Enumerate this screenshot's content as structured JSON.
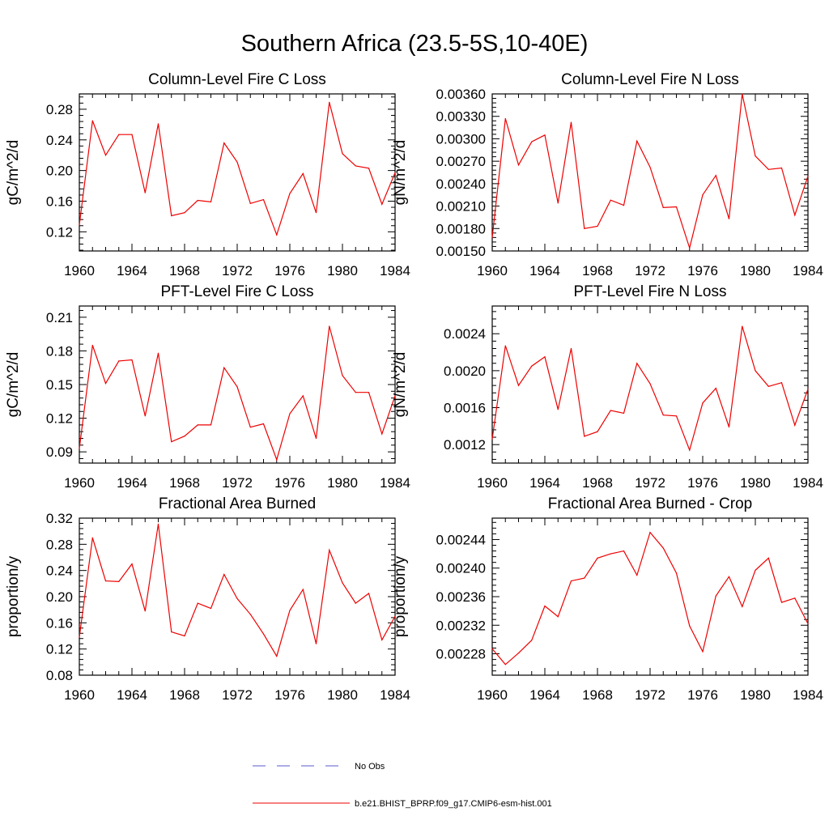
{
  "figure": {
    "title": "Southern Africa (23.5-5S,10-40E)"
  },
  "legend": [
    {
      "label": "No Obs",
      "color": "#5a5acc",
      "style": "dashed"
    },
    {
      "label": "b.e21.BHIST_BPRP.f09_g17.CMIP6-esm-hist.001",
      "color": "#ee0000",
      "style": "solid"
    }
  ],
  "chart_data": [
    {
      "type": "line",
      "title": "Column-Level Fire C Loss",
      "ylabel": "gC/m^2/d",
      "xlim": [
        1960,
        1984
      ],
      "ylim": [
        0.095,
        0.3
      ],
      "xticks": [
        "1960",
        "1964",
        "1968",
        "1972",
        "1976",
        "1980",
        "1984"
      ],
      "yticks": [
        "0.12",
        "0.16",
        "0.20",
        "0.24",
        "0.28"
      ],
      "x": [
        1960,
        1961,
        1962,
        1963,
        1964,
        1965,
        1966,
        1967,
        1968,
        1969,
        1970,
        1971,
        1972,
        1973,
        1974,
        1975,
        1976,
        1977,
        1978,
        1979,
        1980,
        1981,
        1982,
        1983,
        1984
      ],
      "series": [
        {
          "name": "b.e21.BHIST_BPRP.f09_g17.CMIP6-esm-hist.001",
          "color": "#ee0000",
          "values": [
            0.129,
            0.265,
            0.22,
            0.247,
            0.247,
            0.171,
            0.261,
            0.141,
            0.145,
            0.161,
            0.159,
            0.236,
            0.211,
            0.157,
            0.162,
            0.116,
            0.17,
            0.196,
            0.145,
            0.289,
            0.222,
            0.206,
            0.203,
            0.156,
            0.197
          ]
        }
      ]
    },
    {
      "type": "line",
      "title": "Column-Level Fire N Loss",
      "ylabel": "gN/m^2/d",
      "xlim": [
        1960,
        1984
      ],
      "ylim": [
        0.0015,
        0.0036
      ],
      "xticks": [
        "1960",
        "1964",
        "1968",
        "1972",
        "1976",
        "1980",
        "1984"
      ],
      "yticks": [
        "0.00150",
        "0.00180",
        "0.00210",
        "0.00240",
        "0.00270",
        "0.00300",
        "0.00330",
        "0.00360"
      ],
      "x": [
        1960,
        1961,
        1962,
        1963,
        1964,
        1965,
        1966,
        1967,
        1968,
        1969,
        1970,
        1971,
        1972,
        1973,
        1974,
        1975,
        1976,
        1977,
        1978,
        1979,
        1980,
        1981,
        1982,
        1983,
        1984
      ],
      "series": [
        {
          "name": "b.e21.BHIST_BPRP.f09_g17.CMIP6-esm-hist.001",
          "color": "#ee0000",
          "values": [
            0.00168,
            0.00327,
            0.00265,
            0.00296,
            0.00305,
            0.00214,
            0.00322,
            0.0018,
            0.00183,
            0.00218,
            0.00211,
            0.00297,
            0.00262,
            0.00208,
            0.00209,
            0.00154,
            0.00225,
            0.00251,
            0.00193,
            0.0036,
            0.00277,
            0.00259,
            0.00261,
            0.00198,
            0.0025
          ]
        }
      ]
    },
    {
      "type": "line",
      "title": "PFT-Level Fire C Loss",
      "ylabel": "gC/m^2/d",
      "xlim": [
        1960,
        1984
      ],
      "ylim": [
        0.08,
        0.22
      ],
      "xticks": [
        "1960",
        "1964",
        "1968",
        "1972",
        "1976",
        "1980",
        "1984"
      ],
      "yticks": [
        "0.09",
        "0.12",
        "0.15",
        "0.18",
        "0.21"
      ],
      "x": [
        1960,
        1961,
        1962,
        1963,
        1964,
        1965,
        1966,
        1967,
        1968,
        1969,
        1970,
        1971,
        1972,
        1973,
        1974,
        1975,
        1976,
        1977,
        1978,
        1979,
        1980,
        1981,
        1982,
        1983,
        1984
      ],
      "series": [
        {
          "name": "b.e21.BHIST_BPRP.f09_g17.CMIP6-esm-hist.001",
          "color": "#ee0000",
          "values": [
            0.093,
            0.185,
            0.151,
            0.171,
            0.172,
            0.122,
            0.178,
            0.099,
            0.104,
            0.114,
            0.114,
            0.165,
            0.148,
            0.112,
            0.115,
            0.083,
            0.124,
            0.14,
            0.102,
            0.202,
            0.158,
            0.143,
            0.143,
            0.106,
            0.14
          ]
        }
      ]
    },
    {
      "type": "line",
      "title": "PFT-Level Fire N Loss",
      "ylabel": "gN/m^2/d",
      "xlim": [
        1960,
        1984
      ],
      "ylim": [
        0.001,
        0.0027
      ],
      "xticks": [
        "1960",
        "1964",
        "1968",
        "1972",
        "1976",
        "1980",
        "1984"
      ],
      "yticks": [
        "0.0012",
        "0.0016",
        "0.0020",
        "0.0024"
      ],
      "x": [
        1960,
        1961,
        1962,
        1963,
        1964,
        1965,
        1966,
        1967,
        1968,
        1969,
        1970,
        1971,
        1972,
        1973,
        1974,
        1975,
        1976,
        1977,
        1978,
        1979,
        1980,
        1981,
        1982,
        1983,
        1984
      ],
      "series": [
        {
          "name": "b.e21.BHIST_BPRP.f09_g17.CMIP6-esm-hist.001",
          "color": "#ee0000",
          "values": [
            0.00126,
            0.00227,
            0.00184,
            0.00205,
            0.00215,
            0.00158,
            0.00224,
            0.00129,
            0.00134,
            0.00157,
            0.00154,
            0.00208,
            0.00186,
            0.00152,
            0.00151,
            0.00114,
            0.00165,
            0.00181,
            0.00139,
            0.00248,
            0.002,
            0.00183,
            0.00187,
            0.00141,
            0.0018
          ]
        }
      ]
    },
    {
      "type": "line",
      "title": "Fractional Area Burned",
      "ylabel": "proportion/y",
      "xlim": [
        1960,
        1984
      ],
      "ylim": [
        0.08,
        0.32
      ],
      "xticks": [
        "1960",
        "1964",
        "1968",
        "1972",
        "1976",
        "1980",
        "1984"
      ],
      "yticks": [
        "0.08",
        "0.12",
        "0.16",
        "0.20",
        "0.24",
        "0.28",
        "0.32"
      ],
      "x": [
        1960,
        1961,
        1962,
        1963,
        1964,
        1965,
        1966,
        1967,
        1968,
        1969,
        1970,
        1971,
        1972,
        1973,
        1974,
        1975,
        1976,
        1977,
        1978,
        1979,
        1980,
        1981,
        1982,
        1983,
        1984
      ],
      "series": [
        {
          "name": "b.e21.BHIST_BPRP.f09_g17.CMIP6-esm-hist.001",
          "color": "#ee0000",
          "values": [
            0.138,
            0.29,
            0.224,
            0.223,
            0.25,
            0.178,
            0.311,
            0.146,
            0.14,
            0.19,
            0.182,
            0.234,
            0.197,
            0.173,
            0.143,
            0.109,
            0.179,
            0.211,
            0.128,
            0.271,
            0.221,
            0.19,
            0.205,
            0.134,
            0.17
          ]
        }
      ]
    },
    {
      "type": "line",
      "title": "Fractional Area Burned - Crop",
      "ylabel": "proportion/y",
      "xlim": [
        1960,
        1984
      ],
      "ylim": [
        0.00225,
        0.00247
      ],
      "xticks": [
        "1960",
        "1964",
        "1968",
        "1972",
        "1976",
        "1980",
        "1984"
      ],
      "yticks": [
        "0.00228",
        "0.00232",
        "0.00236",
        "0.00240",
        "0.00244"
      ],
      "x": [
        1960,
        1961,
        1962,
        1963,
        1964,
        1965,
        1966,
        1967,
        1968,
        1969,
        1970,
        1971,
        1972,
        1973,
        1974,
        1975,
        1976,
        1977,
        1978,
        1979,
        1980,
        1981,
        1982,
        1983,
        1984
      ],
      "series": [
        {
          "name": "b.e21.BHIST_BPRP.f09_g17.CMIP6-esm-hist.001",
          "color": "#ee0000",
          "values": [
            0.002287,
            0.002265,
            0.002281,
            0.002299,
            0.002347,
            0.002332,
            0.002382,
            0.002386,
            0.002414,
            0.00242,
            0.002424,
            0.00239,
            0.00245,
            0.002428,
            0.002393,
            0.002319,
            0.002283,
            0.002361,
            0.002388,
            0.002346,
            0.002397,
            0.002414,
            0.002352,
            0.002358,
            0.002322
          ]
        }
      ]
    }
  ]
}
